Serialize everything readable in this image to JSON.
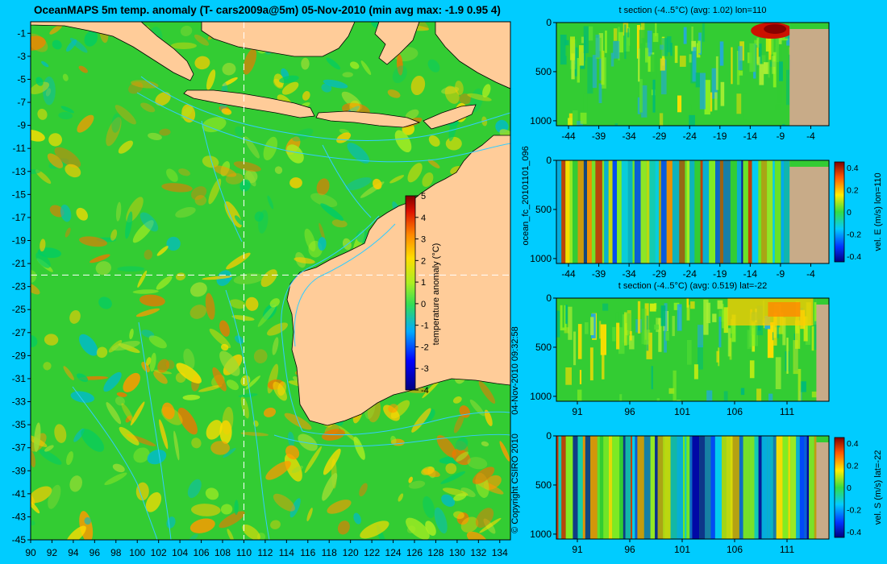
{
  "title": "OceanMAPS 5m temp. anomaly (T- cars2009a@5m) 05-Nov-2010 (min avg max: -1.9 0.95 4)",
  "map": {
    "lon_ticks": [
      "90",
      "92",
      "94",
      "96",
      "98",
      "100",
      "102",
      "104",
      "106",
      "108",
      "110",
      "112",
      "114",
      "116",
      "118",
      "120",
      "122",
      "124",
      "126",
      "128",
      "130",
      "132",
      "134"
    ],
    "lat_ticks": [
      "-1",
      "-3",
      "-5",
      "-7",
      "-9",
      "-11",
      "-13",
      "-15",
      "-17",
      "-19",
      "-21",
      "-23",
      "-25",
      "-27",
      "-29",
      "-31",
      "-33",
      "-35",
      "-37",
      "-39",
      "-41",
      "-43",
      "-45"
    ],
    "lon_range": [
      90,
      135
    ],
    "lat_range": [
      -45,
      0
    ],
    "crosshair": {
      "lon": 110,
      "lat": -22
    },
    "colors": {
      "land": "#ffcc99",
      "contour": "#33ccff",
      "anomaly_base": "#33cc33"
    }
  },
  "colorbar": {
    "label": "temperature anomaly (°C)",
    "ticks": [
      "5",
      "4",
      "3",
      "2",
      "1",
      "0",
      "-1",
      "-2",
      "-3",
      "-4"
    ],
    "range": [
      -4,
      5
    ]
  },
  "sidebar": {
    "forecast_id": "ocean_fc_20101101_096",
    "issued": "04-Nov-2010 09:32:58",
    "copyright": "© Copyright CSIRO 2010"
  },
  "sections": [
    {
      "kind": "temperature",
      "title": "t section (-4..5°C) (avg: 1.02) lon=110",
      "x_ticks": [
        "-44",
        "-39",
        "-34",
        "-29",
        "-24",
        "-19",
        "-14",
        "-9",
        "-4"
      ],
      "y_ticks": [
        "0",
        "500",
        "1000"
      ],
      "land_from": -7.5
    },
    {
      "kind": "velocity",
      "title": "",
      "x_ticks": [
        "-44",
        "-39",
        "-34",
        "-29",
        "-24",
        "-19",
        "-14",
        "-9",
        "-4"
      ],
      "y_ticks": [
        "0",
        "500",
        "1000"
      ],
      "colorbar_ticks": [
        "0.4",
        "0.2",
        "0",
        "-0.2",
        "-0.4"
      ],
      "colorbar_label": "vel. E (m/s) lon=110",
      "land_from": -7.5
    },
    {
      "kind": "temperature",
      "title": "t section (-4..5°C) (avg: 0.519) lat=-22",
      "x_ticks": [
        "91",
        "96",
        "101",
        "106",
        "111"
      ],
      "y_ticks": [
        "0",
        "500",
        "1000"
      ],
      "land_from": 113.8
    },
    {
      "kind": "velocity",
      "title": "",
      "x_ticks": [
        "91",
        "96",
        "101",
        "106",
        "111"
      ],
      "y_ticks": [
        "0",
        "500",
        "1000"
      ],
      "colorbar_ticks": [
        "0.4",
        "0.2",
        "0",
        "-0.2",
        "-0.4"
      ],
      "colorbar_label": "vel. S (m/s) lat=-22",
      "land_from": 113.8
    }
  ]
}
